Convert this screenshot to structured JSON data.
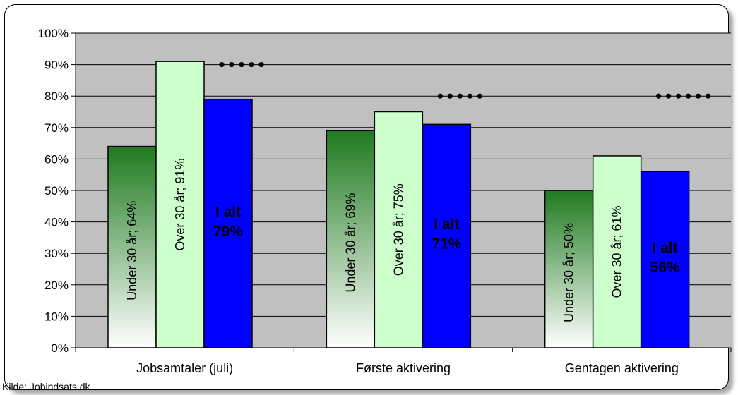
{
  "chart_data": {
    "type": "bar",
    "categories": [
      "Jobsamtaler (juli)",
      "Første aktivering",
      "Gentagen aktivering"
    ],
    "ylim": [
      0,
      100
    ],
    "y_ticks": [
      "0%",
      "10%",
      "20%",
      "30%",
      "40%",
      "50%",
      "60%",
      "70%",
      "80%",
      "90%",
      "100%"
    ],
    "grid": true,
    "series": [
      {
        "name": "Under 30 år",
        "values": [
          64,
          69,
          50
        ],
        "labels": [
          "Under 30 år; 64%",
          "Under 30 år; 69%",
          "Under 30 år; 50%"
        ],
        "colors": [
          "#1f7a1f",
          "#ffffff"
        ]
      },
      {
        "name": "Over 30 år",
        "values": [
          91,
          75,
          61
        ],
        "labels": [
          "Over 30 år; 91%",
          "Over 30 år; 75%",
          "Over 30 år; 61%"
        ],
        "colors": [
          "#ccffcc"
        ]
      },
      {
        "name": "I alt",
        "values": [
          79,
          71,
          56
        ],
        "labels": [
          {
            "line1": "I alt",
            "line2": "79%"
          },
          {
            "line1": "I alt",
            "line2": "71%"
          },
          {
            "line1": "I alt",
            "line2": "56%"
          }
        ],
        "colors": [
          "#0000ff"
        ]
      }
    ],
    "dot_markers": [
      {
        "category": 0,
        "value": 90,
        "count": 5
      },
      {
        "category": 1,
        "value": 80,
        "count": 5
      },
      {
        "category": 2,
        "value": 80,
        "count": 6
      }
    ],
    "plot_background": "#c0c0c0"
  },
  "source_text": "Kilde: Jobindsats.dk"
}
